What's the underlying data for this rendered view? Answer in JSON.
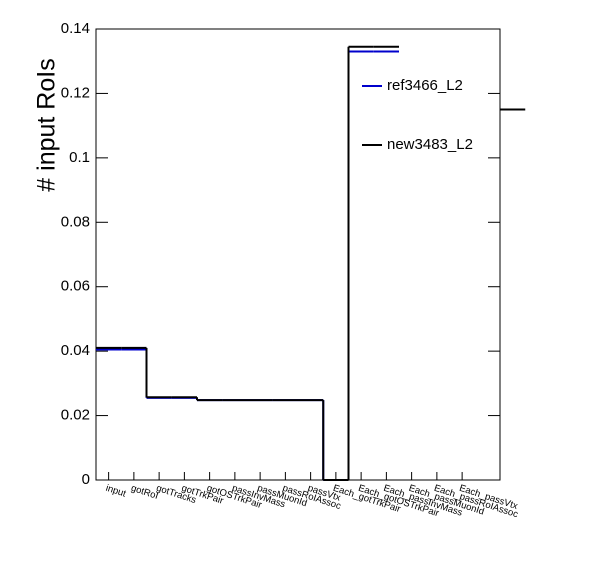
{
  "chart_data": {
    "type": "step",
    "y_label": "# input RoIs",
    "categories": [
      "input",
      "gotRoI",
      "gotTracks",
      "gotTrkPair",
      "gotOSTrkPair",
      "passInvMass",
      "passMuonId",
      "passRoIAssoc",
      "passVtx",
      "Each_gotTrkPair",
      "Each_gotOSTrkPair",
      "Each_passInvMass",
      "Each_passMuonId",
      "Each_passRoIAssoc",
      "Each_passVtx",
      null,
      null
    ],
    "series": [
      {
        "name": "ref3466_L2",
        "color": "#0000cc",
        "values": [
          0.0405,
          0.0405,
          0.0255,
          0.0255,
          0.0248,
          0.0248,
          0.0248,
          0.0248,
          0.0248,
          0,
          0.133,
          0.133,
          null,
          null,
          null,
          null,
          null
        ]
      },
      {
        "name": "new3483_L2",
        "color": "#000000",
        "values": [
          0.041,
          0.041,
          0.0257,
          0.0257,
          0.0248,
          0.0248,
          0.0248,
          0.0248,
          0.0248,
          0,
          0.1345,
          0.1345,
          null,
          null,
          null,
          null,
          0.115
        ]
      }
    ],
    "ylim": [
      0,
      0.14
    ],
    "yticks": [
      0,
      0.02,
      0.04,
      0.06,
      0.08,
      0.1,
      0.12,
      0.14
    ]
  }
}
